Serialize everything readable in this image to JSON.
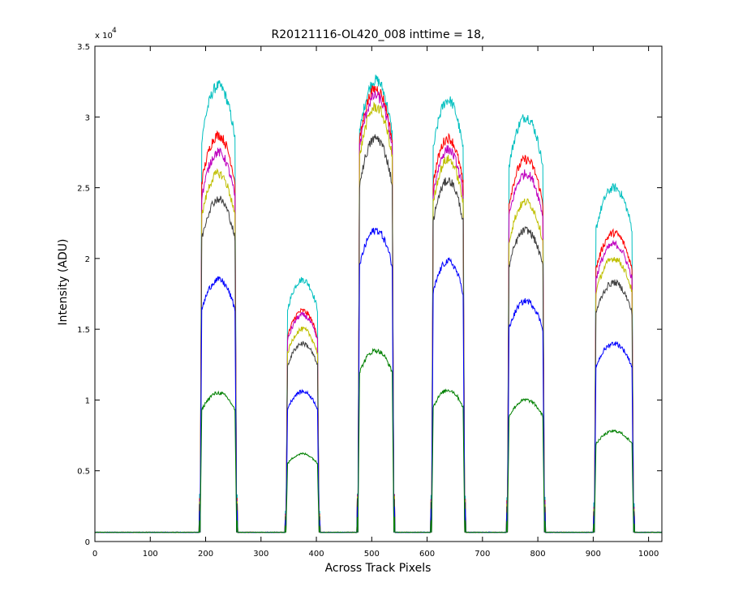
{
  "chart_data": {
    "type": "line",
    "title": "R20121116-OL420_008 inttime = 18,",
    "xlabel": "Across Track Pixels",
    "ylabel": "Intensity (ADU)",
    "y_multiplier": {
      "base": "x 10",
      "exponent": "4"
    },
    "xlim": [
      0,
      1024
    ],
    "ylim": [
      0,
      3.5
    ],
    "xticks": [
      0,
      100,
      200,
      300,
      400,
      500,
      600,
      700,
      800,
      900,
      1000
    ],
    "xtick_labels": [
      "0",
      "100",
      "200",
      "300",
      "400",
      "500",
      "600",
      "700",
      "800",
      "900",
      "1000"
    ],
    "yticks": [
      0,
      0.5,
      1,
      1.5,
      2,
      2.5,
      3,
      3.5
    ],
    "ytick_labels": [
      "0",
      "0.5",
      "1",
      "1.5",
      "2",
      "2.5",
      "3",
      "3.5"
    ],
    "grid": false,
    "baseline": 0.065,
    "bands": [
      {
        "x_start": 190,
        "x_end": 256
      },
      {
        "x_start": 345,
        "x_end": 405
      },
      {
        "x_start": 475,
        "x_end": 540
      },
      {
        "x_start": 608,
        "x_end": 668
      },
      {
        "x_start": 745,
        "x_end": 812
      },
      {
        "x_start": 902,
        "x_end": 973
      }
    ],
    "series": [
      {
        "color": "#00bfbf",
        "peaks": [
          3.22,
          1.85,
          3.26,
          3.12,
          3.0,
          2.5
        ]
      },
      {
        "color": "#ff0000",
        "peaks": [
          2.87,
          1.63,
          3.2,
          2.85,
          2.7,
          2.18
        ]
      },
      {
        "color": "#bf00bf",
        "peaks": [
          2.75,
          1.6,
          3.15,
          2.77,
          2.6,
          2.1
        ]
      },
      {
        "color": "#bfbf00",
        "peaks": [
          2.6,
          1.5,
          3.07,
          2.7,
          2.4,
          2.0
        ]
      },
      {
        "color": "#404040",
        "peaks": [
          2.42,
          1.4,
          2.85,
          2.55,
          2.2,
          1.83
        ]
      },
      {
        "color": "#0000ff",
        "peaks": [
          1.85,
          1.06,
          2.2,
          1.98,
          1.7,
          1.4
        ]
      },
      {
        "color": "#008000",
        "peaks": [
          1.05,
          0.62,
          1.35,
          1.07,
          1.0,
          0.78
        ]
      }
    ]
  }
}
